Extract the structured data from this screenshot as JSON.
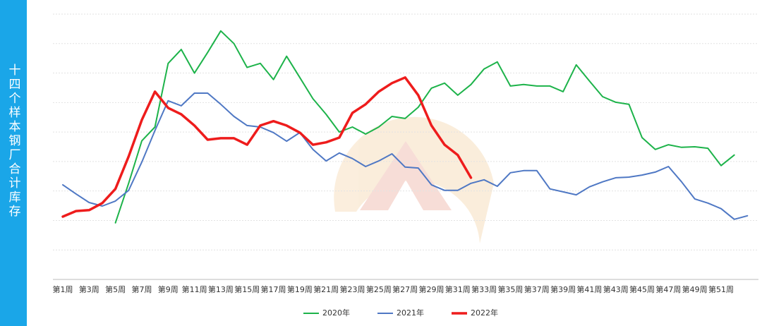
{
  "chart_data": {
    "type": "line",
    "panel_title": "十四个样本钢厂合计库存",
    "categories": [
      "第1周",
      null,
      "第3周",
      null,
      "第5周",
      null,
      "第7周",
      null,
      "第9周",
      null,
      "第11周",
      null,
      "第13周",
      null,
      "第15周",
      null,
      "第17周",
      null,
      "第19周",
      null,
      "第21周",
      null,
      "第23周",
      null,
      "第25周",
      null,
      "第27周",
      null,
      "第29周",
      null,
      "第31周",
      null,
      "第33周",
      null,
      "第35周",
      null,
      "第37周",
      null,
      "第39周",
      null,
      "第41周",
      null,
      "第43周",
      null,
      "第45周",
      null,
      "第47周",
      null,
      "第49周",
      null,
      "第51周",
      null,
      null
    ],
    "series": [
      {
        "name": "2020年",
        "color": "#1db34a",
        "width": 2,
        "values": [
          null,
          null,
          null,
          null,
          1.92,
          3.26,
          4.7,
          5.17,
          7.33,
          7.8,
          7.0,
          7.7,
          8.43,
          8.0,
          7.19,
          7.33,
          6.78,
          7.57,
          6.85,
          6.13,
          5.6,
          5.0,
          5.17,
          4.93,
          5.17,
          5.53,
          5.46,
          5.84,
          6.49,
          6.66,
          6.25,
          6.61,
          7.14,
          7.38,
          6.56,
          6.61,
          6.56,
          6.56,
          6.37,
          7.28,
          6.73,
          6.2,
          6.01,
          5.94,
          4.81,
          4.41,
          4.57,
          4.48,
          4.5,
          4.45,
          3.86,
          4.22,
          null
        ]
      },
      {
        "name": "2021年",
        "color": "#4f78c4",
        "width": 2,
        "values": [
          3.21,
          2.9,
          2.61,
          2.49,
          2.66,
          3.02,
          3.98,
          5.05,
          6.06,
          5.89,
          6.32,
          6.32,
          5.94,
          5.53,
          5.22,
          5.17,
          4.98,
          4.69,
          4.98,
          4.41,
          4.02,
          4.29,
          4.1,
          3.83,
          4.02,
          4.26,
          3.81,
          3.78,
          3.21,
          3.02,
          3.02,
          3.26,
          3.38,
          3.16,
          3.62,
          3.69,
          3.69,
          3.07,
          2.97,
          2.87,
          3.14,
          3.31,
          3.45,
          3.47,
          3.54,
          3.64,
          3.83,
          3.31,
          2.73,
          2.59,
          2.4,
          2.04,
          2.16
        ]
      },
      {
        "name": "2022年",
        "color": "#ee1c1c",
        "width": 3.5,
        "values": [
          2.13,
          2.32,
          2.35,
          2.59,
          3.07,
          4.17,
          5.41,
          6.37,
          5.82,
          5.6,
          5.22,
          4.74,
          4.79,
          4.79,
          4.57,
          5.22,
          5.37,
          5.22,
          4.98,
          4.57,
          4.65,
          4.81,
          5.65,
          5.94,
          6.37,
          6.66,
          6.85,
          6.25,
          5.22,
          4.57,
          4.22,
          3.45,
          null,
          null,
          null,
          null,
          null,
          null,
          null,
          null,
          null,
          null,
          null,
          null,
          null,
          null,
          null,
          null,
          null,
          null,
          null,
          null,
          null
        ]
      }
    ],
    "ylim": [
      0,
      9
    ],
    "yticks": [
      0,
      1,
      2,
      3,
      4,
      5,
      6,
      7,
      8,
      9
    ],
    "ytick_labels": false,
    "grid": true,
    "legend": "bottom"
  }
}
